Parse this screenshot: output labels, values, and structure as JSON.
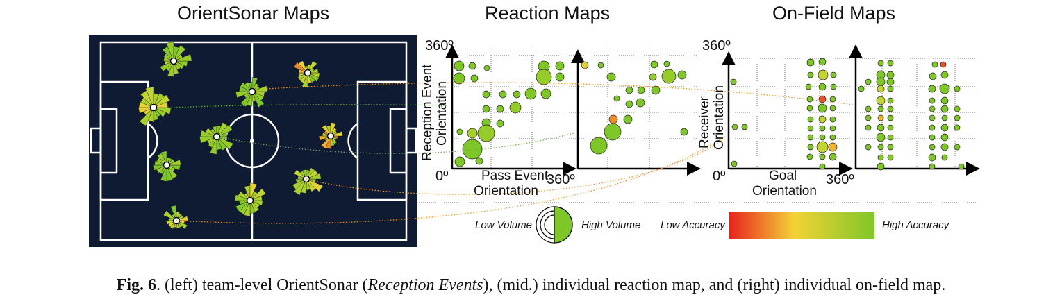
{
  "titles": {
    "orientsonar": "OrientSonar Maps",
    "reaction": "Reaction Maps",
    "onfield": "On-Field Maps"
  },
  "reaction_axes": {
    "y_label_line1": "Reception Event",
    "y_label_line2": "Orientation",
    "x_label_line1": "Pass Event",
    "x_label_line2": "Orientation",
    "y_max": "360º",
    "origin": "0º",
    "x_max": "360º"
  },
  "onfield_axes": {
    "y_label_line1": "Receiver",
    "y_label_line2": "Orientation",
    "x_label_line1": "Goal",
    "x_label_line2": "Orientation",
    "y_max": "360º",
    "origin": "0º",
    "x_max": "360º"
  },
  "legend": {
    "low_volume": "Low Volume",
    "high_volume": "High Volume",
    "low_accuracy": "Low Accuracy",
    "high_accuracy": "High Accuracy"
  },
  "colors": {
    "pitch": "#0f1a33",
    "low_accuracy": "#e8211f",
    "mid_accuracy": "#f2d335",
    "high_accuracy": "#7fc728"
  },
  "caption": {
    "fig": "Fig. 6",
    "part1": ". (left) team-level OrientSonar (",
    "italic": "Reception Events",
    "part2": "), (mid.) individual reaction map, and (right) individual on-field map."
  }
}
